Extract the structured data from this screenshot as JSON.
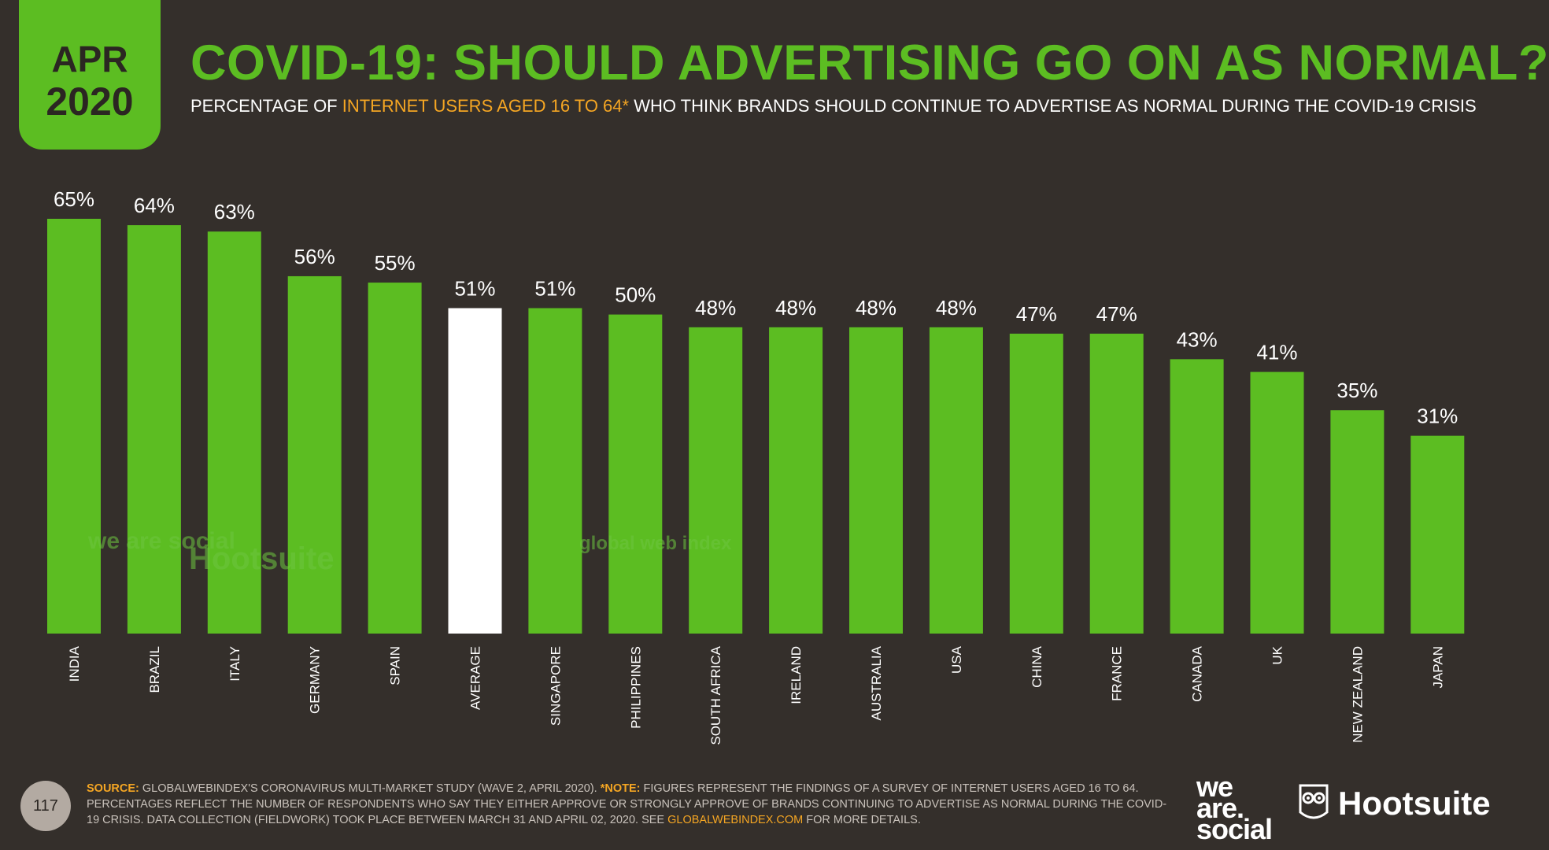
{
  "badge": {
    "month": "APR",
    "year": "2020"
  },
  "title": "COVID-19: SHOULD ADVERTISING GO ON AS NORMAL?",
  "subtitle": {
    "part1": "PERCENTAGE OF ",
    "highlight": "INTERNET USERS AGED 16 TO 64*",
    "part2": " WHO THINK BRANDS SHOULD CONTINUE TO ADVERTISE AS NORMAL DURING THE COVID-19 CRISIS"
  },
  "colors": {
    "bar": "#5cbd22",
    "highlight_bar": "#ffffff",
    "background": "#342f2b",
    "accent": "#f5a623"
  },
  "chart_data": {
    "type": "bar",
    "categories": [
      "INDIA",
      "BRAZIL",
      "ITALY",
      "GERMANY",
      "SPAIN",
      "AVERAGE",
      "SINGAPORE",
      "PHILIPPINES",
      "SOUTH AFRICA",
      "IRELAND",
      "AUSTRALIA",
      "USA",
      "CHINA",
      "FRANCE",
      "CANADA",
      "UK",
      "NEW ZEALAND",
      "JAPAN"
    ],
    "values": [
      65,
      64,
      63,
      56,
      55,
      51,
      51,
      50,
      48,
      48,
      48,
      48,
      47,
      47,
      43,
      41,
      35,
      31
    ],
    "labels": [
      "65%",
      "64%",
      "63%",
      "56%",
      "55%",
      "51%",
      "51%",
      "50%",
      "48%",
      "48%",
      "48%",
      "48%",
      "47%",
      "47%",
      "43%",
      "41%",
      "35%",
      "31%"
    ],
    "highlight_category": "AVERAGE",
    "ylim": [
      0,
      65
    ],
    "grid": false
  },
  "watermarks": {
    "was": "we are social",
    "hootsuite": "Hootsuite",
    "gwi": "global web index"
  },
  "footer": {
    "page": "117",
    "source_label": "SOURCE:",
    "source_text": " GLOBALWEBINDEX'S CORONAVIRUS MULTI-MARKET STUDY (WAVE 2, APRIL 2020). ",
    "note_label": "*NOTE:",
    "note_text": " FIGURES REPRESENT THE FINDINGS OF A SURVEY OF INTERNET USERS AGED 16 TO 64. PERCENTAGES REFLECT THE NUMBER OF RESPONDENTS WHO SAY THEY EITHER APPROVE OR STRONGLY APPROVE OF BRANDS CONTINUING TO ADVERTISE AS NORMAL DURING THE COVID-19 CRISIS. DATA COLLECTION (FIELDWORK) TOOK PLACE BETWEEN MARCH 31 AND APRIL 02, 2020. SEE ",
    "link": "GLOBALWEBINDEX.COM",
    "end": " FOR MORE DETAILS."
  },
  "brands": {
    "was_line1": "we",
    "was_line2": "are.",
    "was_line3": "social",
    "hootsuite": "Hootsuite"
  }
}
